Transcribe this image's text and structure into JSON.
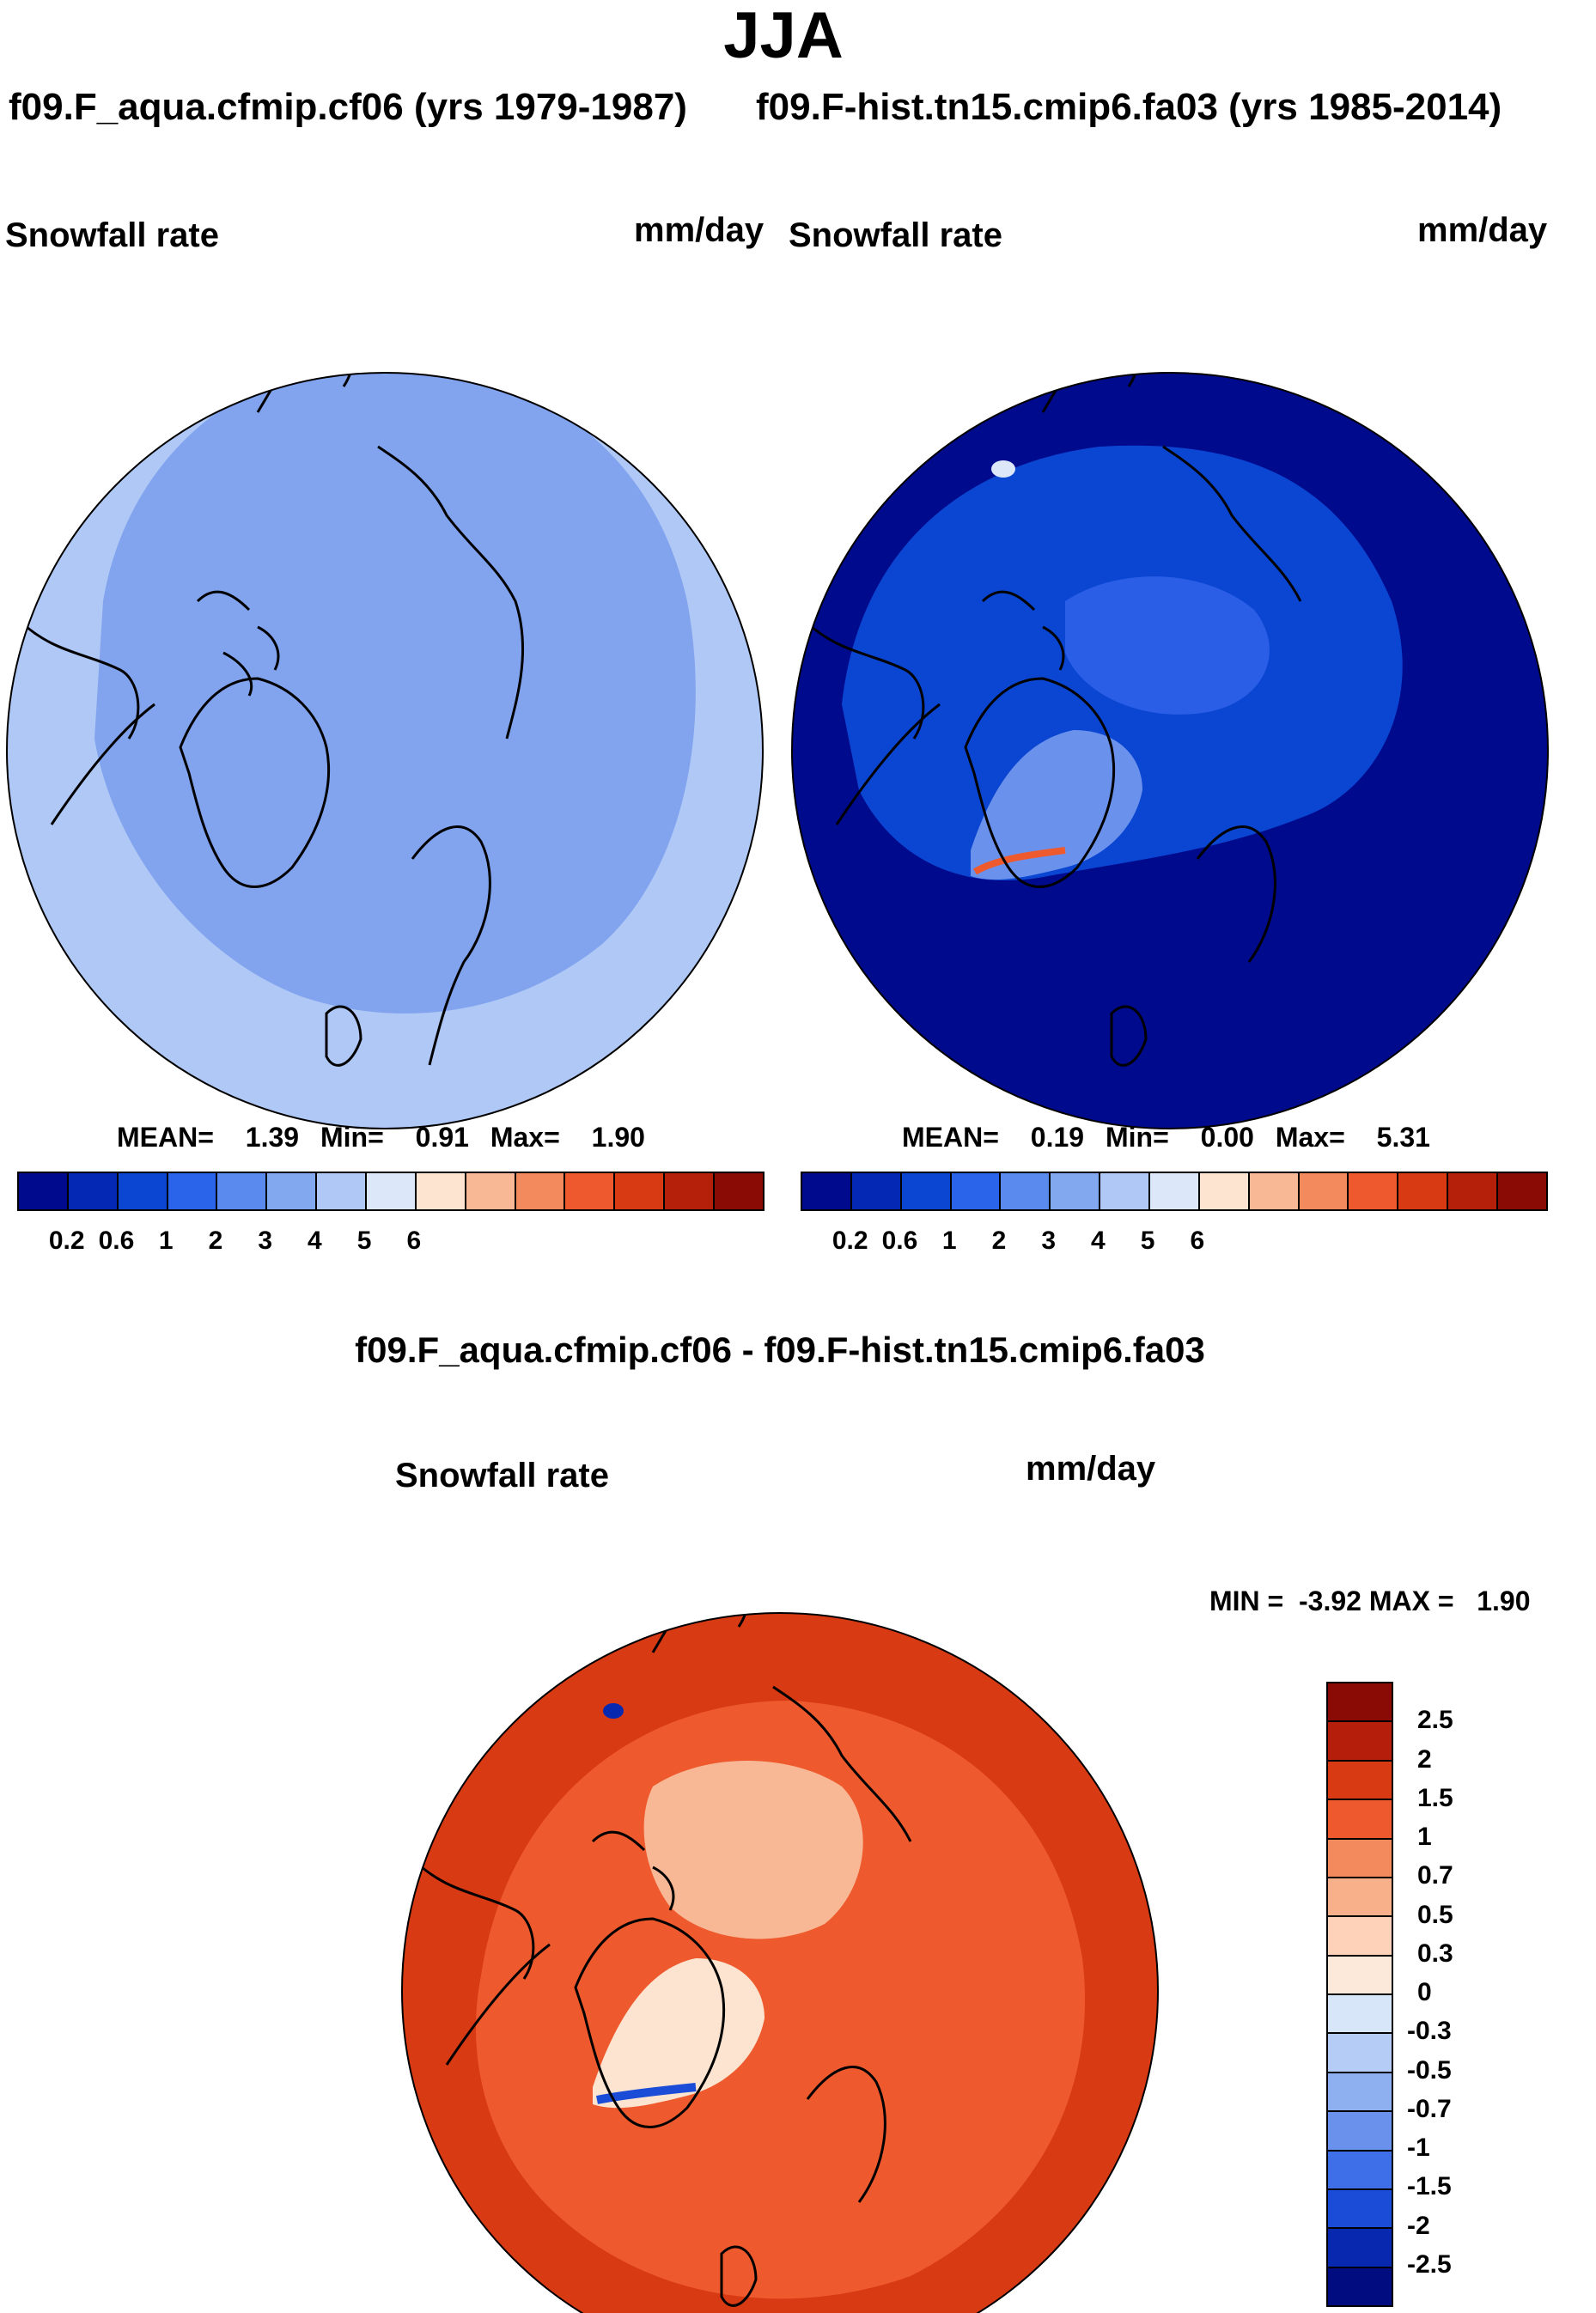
{
  "page": {
    "title": "JJA"
  },
  "panel_left": {
    "title": "f09.F_aqua.cfmip.cf06 (yrs 1979-1987)",
    "variable": "Snowfall rate",
    "units": "mm/day",
    "mean_label": "MEAN=",
    "mean_value": "1.39",
    "min_label": "Min=",
    "min_value": "0.91",
    "max_label": "Max=",
    "max_value": "1.90"
  },
  "panel_right": {
    "title": "f09.F-hist.tn15.cmip6.fa03 (yrs 1985-2014)",
    "variable": "Snowfall rate",
    "units": "mm/day",
    "mean_label": "MEAN=",
    "mean_value": "0.19",
    "min_label": "Min=",
    "min_value": "0.00",
    "max_label": "Max=",
    "max_value": "5.31"
  },
  "panel_diff": {
    "title": "f09.F_aqua.cfmip.cf06 - f09.F-hist.tn15.cmip6.fa03",
    "variable": "Snowfall rate",
    "units": "mm/day",
    "minmax_text": "MIN =  -3.92 MAX =   1.90"
  },
  "colorbar_abs": {
    "colors": [
      "#000a8c",
      "#0428b4",
      "#0a46d2",
      "#2a64ea",
      "#5a8aee",
      "#82a8f0",
      "#b0c8f6",
      "#dce8fa",
      "#fde4d0",
      "#f8b896",
      "#f38a5e",
      "#ee5a2e",
      "#d83a14",
      "#b4200a",
      "#8a0a05"
    ],
    "ticks": [
      "0.2",
      "0.6",
      "1",
      "2",
      "3",
      "4",
      "5",
      "6"
    ]
  },
  "colorbar_diff": {
    "colors_top_to_bottom": [
      "#8a0a05",
      "#b41e0a",
      "#d83a14",
      "#ee5a2e",
      "#f38a5e",
      "#f8b08a",
      "#fdd2b8",
      "#fde9da",
      "#d8e6fa",
      "#b4ccf6",
      "#8eb0f0",
      "#6a92ec",
      "#3e6ee8",
      "#1a4cd8",
      "#0828b0",
      "#000c80"
    ],
    "ticks": [
      "2.5",
      "2",
      "1.5",
      "1",
      "0.7",
      "0.5",
      "0.3",
      "0",
      "-0.3",
      "-0.5",
      "-0.7",
      "-1",
      "-1.5",
      "-2",
      "-2.5"
    ]
  },
  "maps": {
    "left": {
      "ocean_fill": "#82a4ee",
      "ring_fill": "#b0c8f6",
      "interior_fill": "#82a4ee"
    },
    "right": {
      "ocean_fill": "#000a8c",
      "ring_fill": "#0a46d2",
      "interior_fill": "#2a5ee6",
      "greenland_fill": "#6a92ec"
    },
    "diff": {
      "ocean_fill": "#ee5a2e",
      "ring_fill": "#d83a14",
      "interior_fill": "#f8b896",
      "greenland_fill": "#fde4d0"
    }
  }
}
